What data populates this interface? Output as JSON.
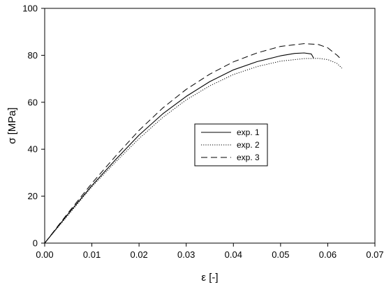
{
  "chart_data": {
    "type": "line",
    "title": "",
    "xlabel": "ε [-]",
    "ylabel": "σ [MPa]",
    "xlim": [
      0,
      0.07
    ],
    "ylim": [
      0,
      100
    ],
    "xticks": [
      0.0,
      0.01,
      0.02,
      0.03,
      0.04,
      0.05,
      0.06,
      0.07
    ],
    "xtick_labels": [
      "0.00",
      "0.01",
      "0.02",
      "0.03",
      "0.04",
      "0.05",
      "0.06",
      "0.07"
    ],
    "yticks": [
      0,
      20,
      40,
      60,
      80,
      100
    ],
    "ytick_labels": [
      "0",
      "20",
      "40",
      "60",
      "80",
      "100"
    ],
    "grid": false,
    "legend_position": "center-right",
    "series": [
      {
        "name": "exp. 1",
        "style": "solid",
        "points": [
          [
            0,
            0
          ],
          [
            0.005,
            12.5
          ],
          [
            0.01,
            24.5
          ],
          [
            0.015,
            35.5
          ],
          [
            0.02,
            46
          ],
          [
            0.025,
            55
          ],
          [
            0.03,
            62.5
          ],
          [
            0.035,
            68.8
          ],
          [
            0.04,
            73.8
          ],
          [
            0.045,
            77.3
          ],
          [
            0.05,
            79.8
          ],
          [
            0.053,
            80.8
          ],
          [
            0.055,
            81
          ],
          [
            0.0565,
            80.6
          ],
          [
            0.057,
            78.8
          ]
        ]
      },
      {
        "name": "exp. 2",
        "style": "dotted",
        "points": [
          [
            0,
            0
          ],
          [
            0.005,
            12
          ],
          [
            0.01,
            24
          ],
          [
            0.015,
            34.5
          ],
          [
            0.02,
            44.5
          ],
          [
            0.025,
            53.5
          ],
          [
            0.03,
            61
          ],
          [
            0.035,
            67
          ],
          [
            0.04,
            71.8
          ],
          [
            0.045,
            75.2
          ],
          [
            0.05,
            77.5
          ],
          [
            0.055,
            78.6
          ],
          [
            0.058,
            78.7
          ],
          [
            0.06,
            78.2
          ],
          [
            0.062,
            76.5
          ],
          [
            0.063,
            74.5
          ]
        ]
      },
      {
        "name": "exp. 3",
        "style": "dashed",
        "points": [
          [
            0,
            0
          ],
          [
            0.005,
            13
          ],
          [
            0.01,
            25.5
          ],
          [
            0.015,
            37
          ],
          [
            0.02,
            48
          ],
          [
            0.025,
            57.5
          ],
          [
            0.03,
            65.5
          ],
          [
            0.035,
            72
          ],
          [
            0.04,
            77.2
          ],
          [
            0.045,
            81
          ],
          [
            0.05,
            83.8
          ],
          [
            0.055,
            85
          ],
          [
            0.058,
            84.6
          ],
          [
            0.06,
            83.2
          ],
          [
            0.062,
            80
          ],
          [
            0.063,
            78
          ]
        ]
      }
    ]
  }
}
